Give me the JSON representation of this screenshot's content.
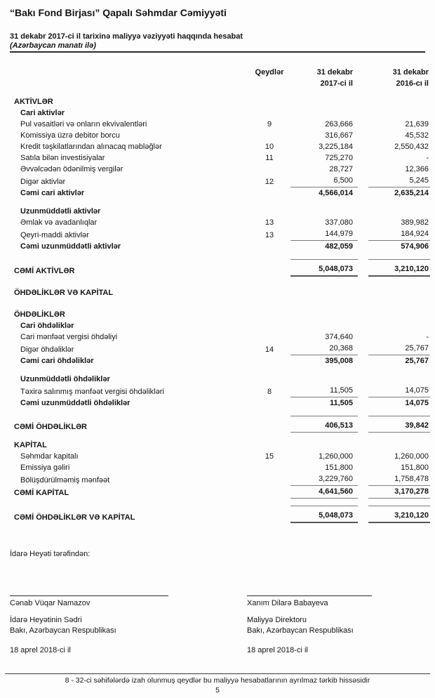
{
  "page": {
    "title": "“Bakı Fond Birjası” Qapalı Səhmdar Cəmiyyəti",
    "subtitle": "31 dekabr 2017-ci il tarixinə maliyyə vəziyyəti haqqında hesabat",
    "currency_note": "(Azərbaycan manatı ilə)",
    "footer_note": "8 - 32-ci səhifələrdə izah olunmuş qeydlər bu maliyyə hesabatlarının ayrılmaz tərkib hissəsidir",
    "page_number": "5"
  },
  "table": {
    "columns": {
      "notes": "Qeydlər",
      "col2017_line1": "31 dekabr",
      "col2017_line2": "2017-ci il",
      "col2016_line1": "31 dekabr",
      "col2016_line2": "2016-cı il"
    },
    "rows": [
      {
        "type": "section",
        "label": "AKTİVLƏR"
      },
      {
        "type": "group",
        "label": "Cari aktivlər"
      },
      {
        "type": "item",
        "label": "Pul vəsaitləri və onların ekvivalentləri",
        "note": "9",
        "v2017": "263,666",
        "v2016": "21,639"
      },
      {
        "type": "item",
        "label": "Komissiya üzrə debitor borcu",
        "v2017": "316,667",
        "v2016": "45,532"
      },
      {
        "type": "item",
        "label": "Kredit təşkilatlarından alınacaq məbləğlər",
        "note": "10",
        "v2017": "3,225,184",
        "v2016": "2,550,432"
      },
      {
        "type": "item",
        "label": "Satıla bilən investisiyalar",
        "note": "11",
        "v2017": "725,270",
        "v2016": "-"
      },
      {
        "type": "item",
        "label": "Əvvəlcədən ödənilmiş vergilər",
        "v2017": "28,727",
        "v2016": "12,366"
      },
      {
        "type": "item",
        "label": "Digər aktivlər",
        "note": "12",
        "v2017": "6,500",
        "v2016": "5,245",
        "line_bottom": "thin"
      },
      {
        "type": "subtotal",
        "label": "Cəmi cari aktivlər",
        "v2017": "4,566,014",
        "v2016": "2,635,214"
      },
      {
        "type": "spacer"
      },
      {
        "type": "group",
        "label": "Uzunmüddətli aktivlər"
      },
      {
        "type": "item",
        "label": "Əmlak və avadanlıqlar",
        "note": "13",
        "v2017": "337,080",
        "v2016": "389,982"
      },
      {
        "type": "item",
        "label": "Qeyri-maddi aktivlər",
        "note": "13",
        "v2017": "144,979",
        "v2016": "184,924",
        "line_bottom": "thin"
      },
      {
        "type": "subtotal",
        "label": "Cəmi uzunmüddətli aktivlər",
        "v2017": "482,059",
        "v2016": "574,906"
      },
      {
        "type": "spacer"
      },
      {
        "type": "grand",
        "label": "CƏMİ AKTİVLƏR",
        "v2017": "5,048,073",
        "v2016": "3,210,120",
        "line_top": true,
        "line_bottom": "thick"
      },
      {
        "type": "spacer_lg"
      },
      {
        "type": "section",
        "label": "ÖHDƏLİKLƏR VƏ KAPİTAL"
      },
      {
        "type": "spacer_lg"
      },
      {
        "type": "section",
        "label": "ÖHDƏLİKLƏR"
      },
      {
        "type": "group",
        "label": "Cari öhdəliklər"
      },
      {
        "type": "item",
        "label": "Cari mənfəət vergisi öhdəliyi",
        "v2017": "374,640",
        "v2016": "-"
      },
      {
        "type": "item",
        "label": "Digər öhdəliklər",
        "note": "14",
        "v2017": "20,368",
        "v2016": "25,767",
        "line_bottom": "thin"
      },
      {
        "type": "subtotal",
        "label": "Cəmi cari öhdəliklər",
        "v2017": "395,008",
        "v2016": "25,767"
      },
      {
        "type": "spacer"
      },
      {
        "type": "group",
        "label": "Uzunmüddətli öhdəliklər"
      },
      {
        "type": "item",
        "label": "Təxirə salınmış mənfəət vergisi öhdəlikləri",
        "note": "8",
        "v2017": "11,505",
        "v2016": "14,075",
        "line_bottom": "thin"
      },
      {
        "type": "subtotal",
        "label": "Cəmi uzunmüddətli öhdəliklər",
        "v2017": "11,505",
        "v2016": "14,075"
      },
      {
        "type": "spacer"
      },
      {
        "type": "grand",
        "label": "CƏMİ ÖHDƏLİKLƏR",
        "v2017": "406,513",
        "v2016": "39,842",
        "line_top": true,
        "line_bottom": "thin"
      },
      {
        "type": "spacer"
      },
      {
        "type": "section",
        "label": "KAPİTAL"
      },
      {
        "type": "item",
        "label": "Səhmdar kapitalı",
        "note": "15",
        "v2017": "1,260,000",
        "v2016": "1,260,000"
      },
      {
        "type": "item",
        "label": "Emissiya gəliri",
        "v2017": "151,800",
        "v2016": "151,800"
      },
      {
        "type": "item",
        "label": "Bölüşdürülməmiş mənfəət",
        "v2017": "3,229,760",
        "v2016": "1,758,478",
        "line_bottom": "thin"
      },
      {
        "type": "grand",
        "label": "CƏMİ KAPİTAL",
        "v2017": "4,641,560",
        "v2016": "3,170,278",
        "line_bottom": "thin"
      },
      {
        "type": "spacer"
      },
      {
        "type": "grand",
        "label": "CƏMİ ÖHDƏLİKLƏR VƏ KAPİTAL",
        "v2017": "5,048,073",
        "v2016": "3,210,120",
        "line_top": true,
        "line_bottom": "thick"
      }
    ]
  },
  "signatures": {
    "intro": "İdarə Heyəti tərəfindən:",
    "left": {
      "name": "Cənab Vüqar Namazov",
      "role": "İdarə Heyətinin Sədri",
      "location": "Bakı, Azərbaycan Respublikası",
      "date": "18 aprel 2018-ci il"
    },
    "right": {
      "name": "Xanım Dilarə Babayeva",
      "role": "Maliyyə Direktoru",
      "location": "Bakı, Azərbaycan Respublikası",
      "date": "18 aprel 2018-ci il"
    }
  }
}
